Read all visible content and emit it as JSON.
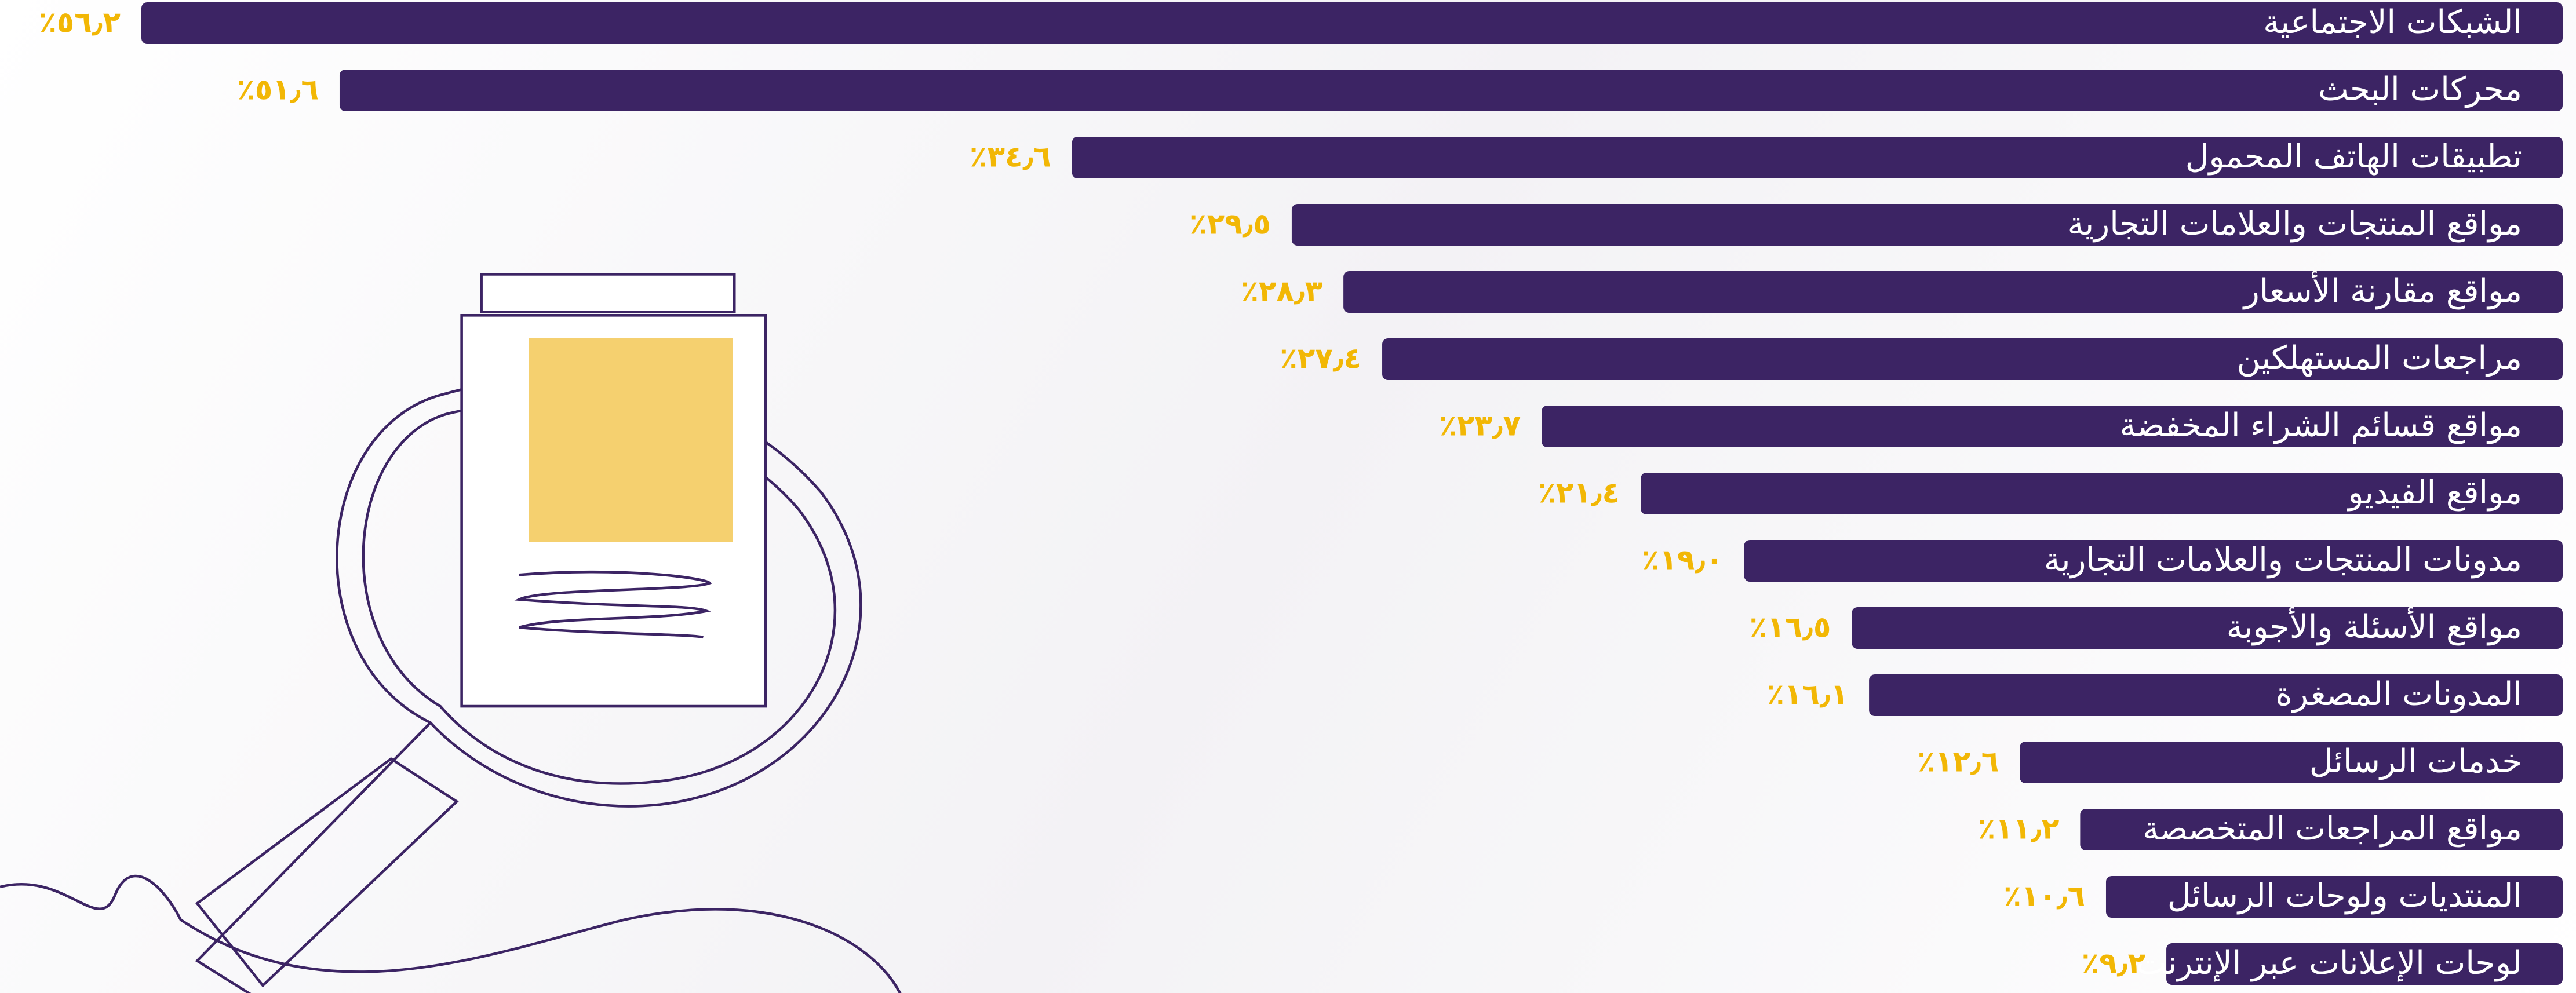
{
  "chart_data": {
    "type": "bar",
    "orientation": "horizontal",
    "categories": [
      "الشبكات الاجتماعية",
      "محركات البحث",
      "تطبيقات الهاتف المحمول",
      "مواقع المنتجات والعلامات التجارية",
      "مواقع مقارنة الأسعار",
      "مراجعات المستهلكين",
      "مواقع قسائم الشراء المخفضة",
      "مواقع الفيديو",
      "مدونات المنتجات والعلامات التجارية",
      "مواقع الأسئلة والأجوبة",
      "المدونات المصغرة",
      "خدمات الرسائل",
      "مواقع المراجعات المتخصصة",
      "المنتديات ولوحات الرسائل",
      "لوحات الإعلانات عبر الإنترنت"
    ],
    "values": [
      56.2,
      51.6,
      34.6,
      29.5,
      28.3,
      27.4,
      23.7,
      21.4,
      19.0,
      16.5,
      16.1,
      12.6,
      11.2,
      10.6,
      9.2
    ],
    "value_labels": [
      "٥٦٫٢٪",
      "٥١٫٦٪",
      "٣٤٫٦٪",
      "٢٩٫٥٪",
      "٢٨٫٣٪",
      "٢٧٫٤٪",
      "٢٣٫٧٪",
      "٢١٫٤٪",
      "١٩٫٠٪",
      "١٦٫٥٪",
      "١٦٫١٪",
      "١٢٫٦٪",
      "١١٫٢٪",
      "١٠٫٦٪",
      "٩٫٢٪"
    ],
    "color": "#3c2464",
    "label_color": "#f2b705"
  }
}
